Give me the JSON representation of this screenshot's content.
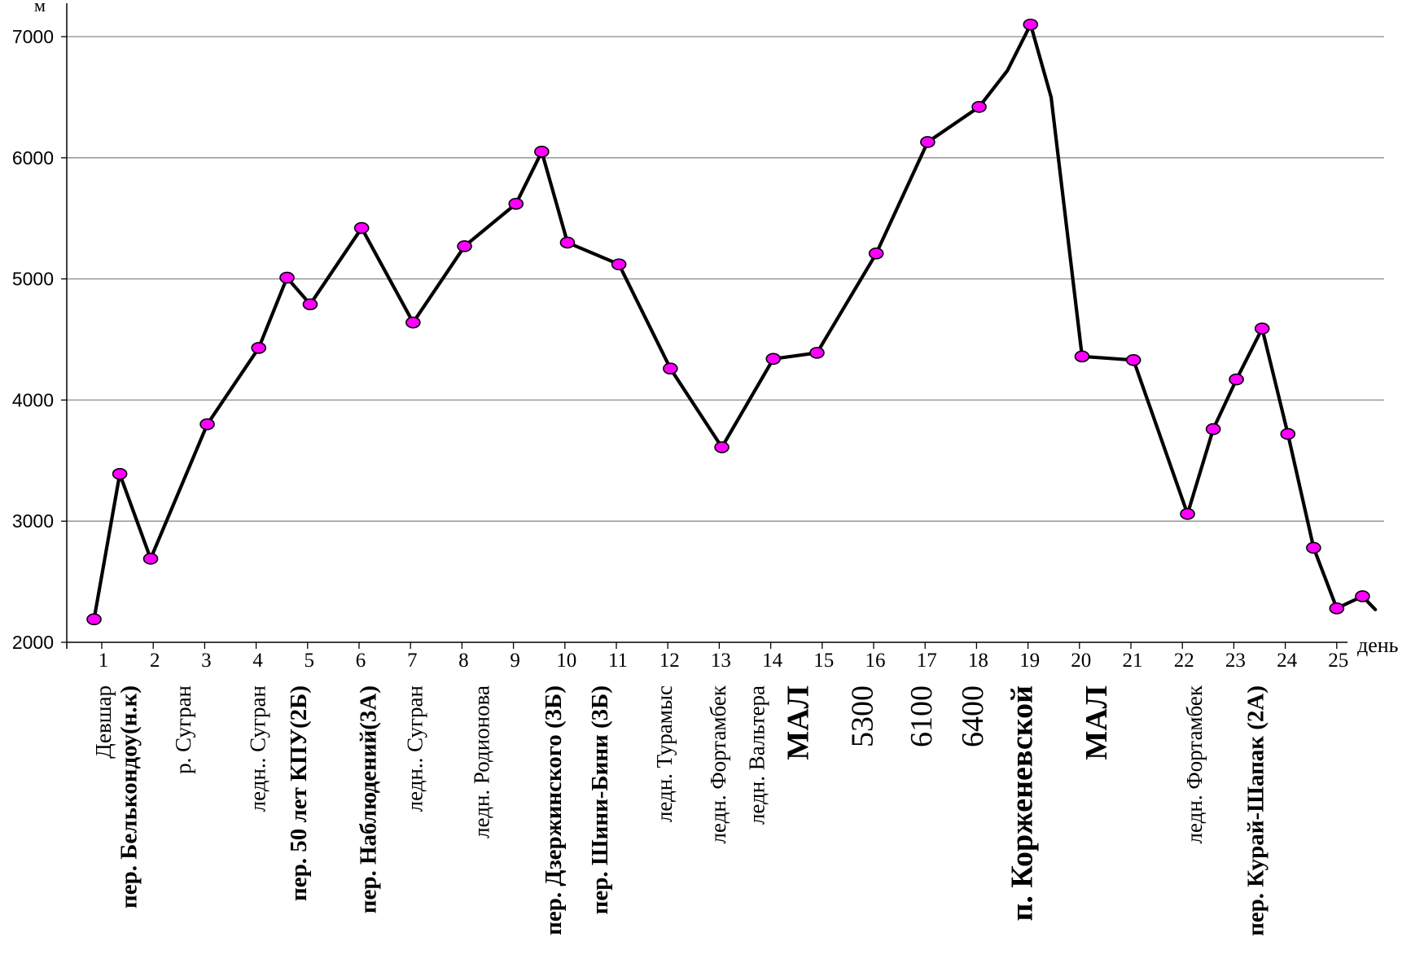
{
  "chart_data": {
    "type": "line",
    "ylabel": "м",
    "xlabel": "день",
    "ylim": [
      2000,
      7300
    ],
    "y_ticks": [
      2000,
      3000,
      4000,
      5000,
      6000,
      7000
    ],
    "x_ticks": [
      "1",
      "2",
      "3",
      "4",
      "5",
      "6",
      "7",
      "8",
      "9",
      "10",
      "11",
      "12",
      "13",
      "14",
      "15",
      "16",
      "17",
      "18",
      "19",
      "20",
      "21",
      "22",
      "23",
      "24",
      "25"
    ],
    "grid": true,
    "line_color": "#000000",
    "marker_color": "#ff00ff",
    "series": [
      {
        "points": [
          {
            "x": 0.85,
            "y": 2190,
            "marker": true
          },
          {
            "x": 1.35,
            "y": 3390,
            "marker": true
          },
          {
            "x": 1.95,
            "y": 2690,
            "marker": true
          },
          {
            "x": 3.05,
            "y": 3800,
            "marker": true
          },
          {
            "x": 4.05,
            "y": 4430,
            "marker": true
          },
          {
            "x": 4.6,
            "y": 5010,
            "marker": true
          },
          {
            "x": 5.05,
            "y": 4790,
            "marker": true
          },
          {
            "x": 6.05,
            "y": 5420,
            "marker": true
          },
          {
            "x": 7.05,
            "y": 4640,
            "marker": true
          },
          {
            "x": 8.05,
            "y": 5270,
            "marker": true
          },
          {
            "x": 9.05,
            "y": 5620,
            "marker": true
          },
          {
            "x": 9.55,
            "y": 6050,
            "marker": true
          },
          {
            "x": 10.05,
            "y": 5300,
            "marker": true
          },
          {
            "x": 11.05,
            "y": 5120,
            "marker": true
          },
          {
            "x": 12.05,
            "y": 4260,
            "marker": true
          },
          {
            "x": 13.05,
            "y": 3610,
            "marker": true
          },
          {
            "x": 14.05,
            "y": 4340,
            "marker": true
          },
          {
            "x": 14.9,
            "y": 4390,
            "marker": true
          },
          {
            "x": 16.05,
            "y": 5210,
            "marker": true
          },
          {
            "x": 17.05,
            "y": 6130,
            "marker": true
          },
          {
            "x": 18.05,
            "y": 6420,
            "marker": true
          },
          {
            "x": 18.6,
            "y": 6720,
            "marker": false
          },
          {
            "x": 19.05,
            "y": 7100,
            "marker": true
          },
          {
            "x": 19.45,
            "y": 6500,
            "marker": false
          },
          {
            "x": 20.05,
            "y": 4360,
            "marker": true
          },
          {
            "x": 21.05,
            "y": 4330,
            "marker": true
          },
          {
            "x": 22.1,
            "y": 3060,
            "marker": true
          },
          {
            "x": 22.6,
            "y": 3760,
            "marker": true
          },
          {
            "x": 23.05,
            "y": 4170,
            "marker": true
          },
          {
            "x": 23.55,
            "y": 4590,
            "marker": true
          },
          {
            "x": 24.05,
            "y": 3720,
            "marker": true
          },
          {
            "x": 24.55,
            "y": 2780,
            "marker": true
          },
          {
            "x": 25.0,
            "y": 2280,
            "marker": true
          },
          {
            "x": 25.5,
            "y": 2380,
            "marker": true
          },
          {
            "x": 25.75,
            "y": 2270,
            "marker": false
          }
        ]
      }
    ],
    "place_labels": [
      {
        "x": 1,
        "text": "Девшар",
        "style": "normal"
      },
      {
        "x": 1.5,
        "text": "пер. Белькондоу(н.к)",
        "style": "bold"
      },
      {
        "x": 2.55,
        "text": "р. Сугран",
        "style": "normal"
      },
      {
        "x": 4,
        "text": "ледн.. Сугран",
        "style": "normal"
      },
      {
        "x": 4.8,
        "text": "пер. 50 лет КПУ(2Б)",
        "style": "bold"
      },
      {
        "x": 6.15,
        "text": "пер. Наблюдений(3А)",
        "style": "bold"
      },
      {
        "x": 7.05,
        "text": "ледн.. Сугран",
        "style": "normal"
      },
      {
        "x": 8.35,
        "text": "ледн. Родионова",
        "style": "normal"
      },
      {
        "x": 9.75,
        "text": "пер. Дзержинского (3Б)",
        "style": "bold"
      },
      {
        "x": 10.65,
        "text": "пер. Шини-Бини (3Б)",
        "style": "bold"
      },
      {
        "x": 11.9,
        "text": "ледн. Турамыс",
        "style": "normal"
      },
      {
        "x": 12.95,
        "text": "ледн. Фортамбек",
        "style": "normal"
      },
      {
        "x": 13.7,
        "text": "ледн. Вальтера",
        "style": "normal"
      },
      {
        "x": 14.55,
        "text": "МАЛ",
        "style": "big"
      },
      {
        "x": 15.8,
        "text": "5300",
        "style": "bignum"
      },
      {
        "x": 16.95,
        "text": "6100",
        "style": "bignum"
      },
      {
        "x": 17.95,
        "text": "6400",
        "style": "bignum"
      },
      {
        "x": 18.9,
        "text": "п. Корженевской",
        "style": "big"
      },
      {
        "x": 20.35,
        "text": "МАЛ",
        "style": "big"
      },
      {
        "x": 22.2,
        "text": "ледн. Фортамбек",
        "style": "normal"
      },
      {
        "x": 23.4,
        "text": "пер. Курай-Шапак (2А)",
        "style": "bold"
      }
    ]
  }
}
